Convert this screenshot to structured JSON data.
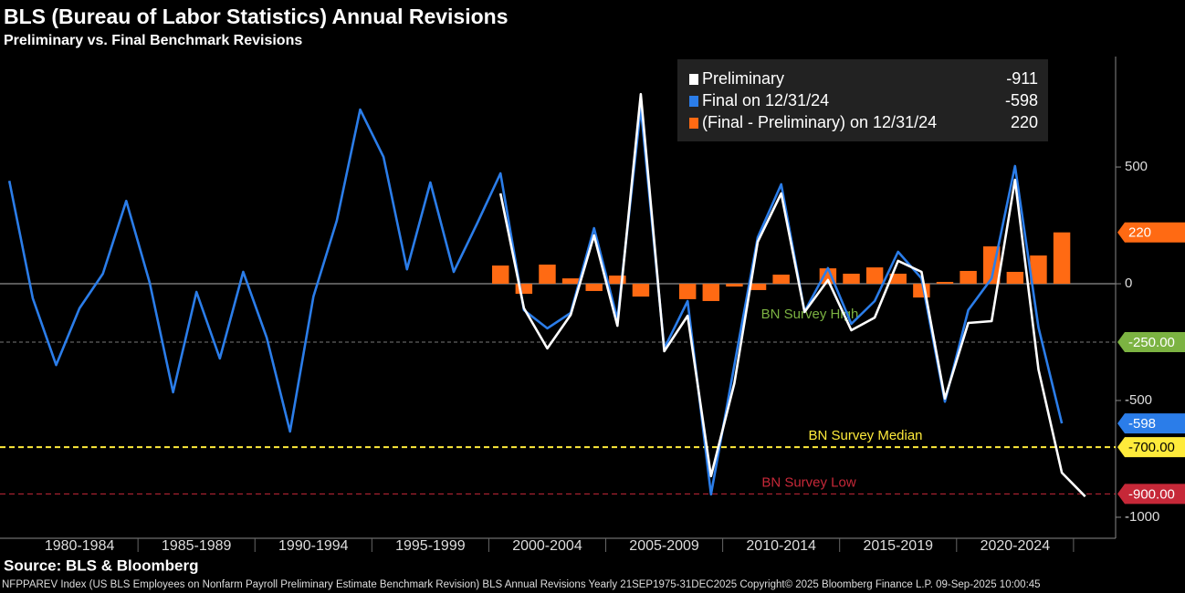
{
  "chart_data": {
    "type": "line",
    "title": "BLS (Bureau of Labor Statistics) Annual Revisions",
    "subtitle": "Preliminary vs. Final Benchmark Revisions",
    "source": "Source: BLS & Bloomberg",
    "footer": "NFPPAREV Index (US BLS Employees on Nonfarm Payroll Preliminary Estimate Benchmark Revision) BLS Annual Revisions  Yearly 21SEP1975-31DEC2025 Copyright© 2025 Bloomberg Finance L.P. 09-Sep-2025 10:00:45",
    "x": [
      1979,
      1980,
      1981,
      1982,
      1983,
      1984,
      1985,
      1986,
      1987,
      1988,
      1989,
      1990,
      1991,
      1992,
      1993,
      1994,
      1995,
      1996,
      1997,
      1998,
      1999,
      2000,
      2001,
      2002,
      2003,
      2004,
      2005,
      2006,
      2007,
      2008,
      2009,
      2010,
      2011,
      2012,
      2013,
      2014,
      2015,
      2016,
      2017,
      2018,
      2019,
      2020,
      2021,
      2022,
      2023,
      2024,
      2025
    ],
    "xlim": [
      1978.6,
      2026.3
    ],
    "x_labels": [
      "1980-1984",
      "1985-1989",
      "1990-1994",
      "1995-1999",
      "2000-2004",
      "2005-2009",
      "2010-2014",
      "2015-2019",
      "2020-2024"
    ],
    "ylim": [
      -1090,
      973
    ],
    "yticks": [
      -1000,
      -500,
      0,
      500
    ],
    "series": [
      {
        "name": "Preliminary",
        "type": "line",
        "color": "#ffffff",
        "values": [
          null,
          null,
          null,
          null,
          null,
          null,
          null,
          null,
          null,
          null,
          null,
          null,
          null,
          null,
          null,
          null,
          null,
          null,
          null,
          null,
          null,
          387,
          -105,
          -277,
          -133,
          207,
          -180,
          812,
          -289,
          -137,
          -824,
          -426,
          180,
          387,
          -121,
          16,
          -199,
          -145,
          98,
          51,
          -492,
          -168,
          -160,
          445,
          -367,
          -809,
          -911
        ]
      },
      {
        "name": "Final on 12/31/24",
        "type": "line",
        "color": "#2b7de9",
        "label_last": true,
        "values": [
          441,
          -62,
          -348,
          -105,
          43,
          355,
          4,
          -465,
          -35,
          -320,
          51,
          -230,
          -633,
          -55,
          270,
          746,
          543,
          62,
          434,
          51,
          258,
          473,
          -113,
          -191,
          -125,
          238,
          -152,
          754,
          -277,
          -74,
          -902,
          -348,
          199,
          426,
          -119,
          67,
          -172,
          -74,
          137,
          23,
          -505,
          -113,
          23,
          504,
          -187,
          -598,
          null
        ]
      },
      {
        "name": "(Final - Preliminary) on 12/31/24",
        "type": "bar",
        "color": "#ff6a13",
        "label_last": true,
        "values": [
          null,
          null,
          null,
          null,
          null,
          null,
          null,
          null,
          null,
          null,
          null,
          null,
          null,
          null,
          null,
          null,
          null,
          null,
          null,
          null,
          null,
          78,
          -43,
          82,
          23,
          -31,
          35,
          -55,
          0,
          -66,
          -74,
          -12,
          -27,
          39,
          0,
          66,
          43,
          70,
          43,
          -59,
          8,
          55,
          160,
          51,
          121,
          220,
          null
        ]
      }
    ],
    "reference_lines": [
      {
        "label": "BN Survey High",
        "value": -250,
        "value_label": "-250.00",
        "color": "#7cb342"
      },
      {
        "label": "BN Survey Median",
        "value": -700,
        "value_label": "-700.00",
        "color": "#ffeb3b"
      },
      {
        "label": "BN Survey Low",
        "value": -900,
        "value_label": "-900.00",
        "color": "#c62838"
      }
    ]
  }
}
